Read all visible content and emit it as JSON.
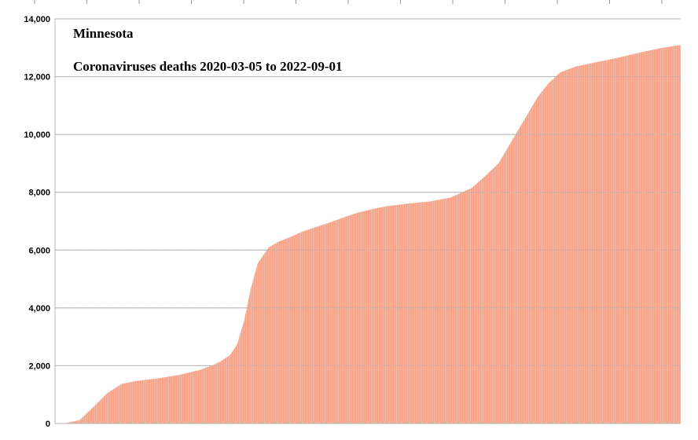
{
  "chart_data": {
    "type": "area",
    "title": "Minnesota",
    "subtitle": "Coronaviruses deaths 2020-03-05 to 2022-09-01",
    "xlabel": "",
    "ylabel": "",
    "ylim": [
      0,
      14000
    ],
    "yticks": [
      {
        "value": 0,
        "label": "0"
      },
      {
        "value": 2000,
        "label": "2,000"
      },
      {
        "value": 4000,
        "label": "4,000"
      },
      {
        "value": 6000,
        "label": "6,000"
      },
      {
        "value": 8000,
        "label": "8,000"
      },
      {
        "value": 10000,
        "label": "10,000"
      },
      {
        "value": 12000,
        "label": "12,000"
      },
      {
        "value": 14000,
        "label": "14,000"
      }
    ],
    "grid": true,
    "legend": "none",
    "fill_color": "#f6a186",
    "gap_color": "#ffffff",
    "grid_color": "#b3b3b3",
    "x": [
      "2020-03-05",
      "2020-03-20",
      "2020-04-10",
      "2020-05-01",
      "2020-05-20",
      "2020-06-10",
      "2020-07-01",
      "2020-08-01",
      "2020-09-01",
      "2020-10-01",
      "2020-10-20",
      "2020-11-01",
      "2020-11-15",
      "2020-11-25",
      "2020-12-05",
      "2020-12-15",
      "2020-12-25",
      "2021-01-10",
      "2021-01-25",
      "2021-02-10",
      "2021-03-01",
      "2021-03-20",
      "2021-04-10",
      "2021-05-01",
      "2021-05-20",
      "2021-06-10",
      "2021-07-01",
      "2021-08-01",
      "2021-09-01",
      "2021-10-01",
      "2021-11-01",
      "2021-11-20",
      "2021-12-10",
      "2021-12-25",
      "2022-01-10",
      "2022-01-25",
      "2022-02-05",
      "2022-02-20",
      "2022-03-10",
      "2022-04-01",
      "2022-05-01",
      "2022-06-01",
      "2022-07-01",
      "2022-08-01",
      "2022-09-01"
    ],
    "series": [
      {
        "values": [
          0,
          10,
          120,
          600,
          1050,
          1370,
          1470,
          1560,
          1680,
          1850,
          2010,
          2150,
          2380,
          2750,
          3550,
          4700,
          5550,
          6100,
          6300,
          6450,
          6650,
          6800,
          6970,
          7150,
          7300,
          7420,
          7520,
          7610,
          7680,
          7820,
          8150,
          8550,
          9000,
          9600,
          10250,
          10850,
          11300,
          11750,
          12150,
          12350,
          12500,
          12650,
          12820,
          12980,
          13100
        ]
      }
    ]
  }
}
